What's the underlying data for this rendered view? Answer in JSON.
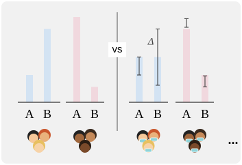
{
  "vs": "vs",
  "delta": "Δ",
  "ellipsis": "...",
  "panels": [
    {
      "bars": [
        {
          "label": "A",
          "value": 32,
          "color": "#d3e3f3"
        },
        {
          "label": "B",
          "value": 86,
          "color": "#d3e3f3"
        }
      ]
    },
    {
      "bars": [
        {
          "label": "A",
          "value": 100,
          "color": "#f1d8de"
        },
        {
          "label": "B",
          "value": 18,
          "color": "#f1d8de"
        }
      ]
    },
    {
      "bars": [
        {
          "label": "A",
          "value": 53,
          "color": "#d3e3f3",
          "error": [
            32,
            53
          ]
        },
        {
          "label": "B",
          "value": 53,
          "color": "#d3e3f3",
          "error": [
            20,
            86
          ]
        }
      ]
    },
    {
      "bars": [
        {
          "label": "A",
          "value": 86,
          "color": "#f1d8de",
          "error": [
            88,
            98
          ]
        },
        {
          "label": "B",
          "value": 32,
          "color": "#f1d8de",
          "error": [
            18,
            31
          ]
        }
      ]
    }
  ]
}
